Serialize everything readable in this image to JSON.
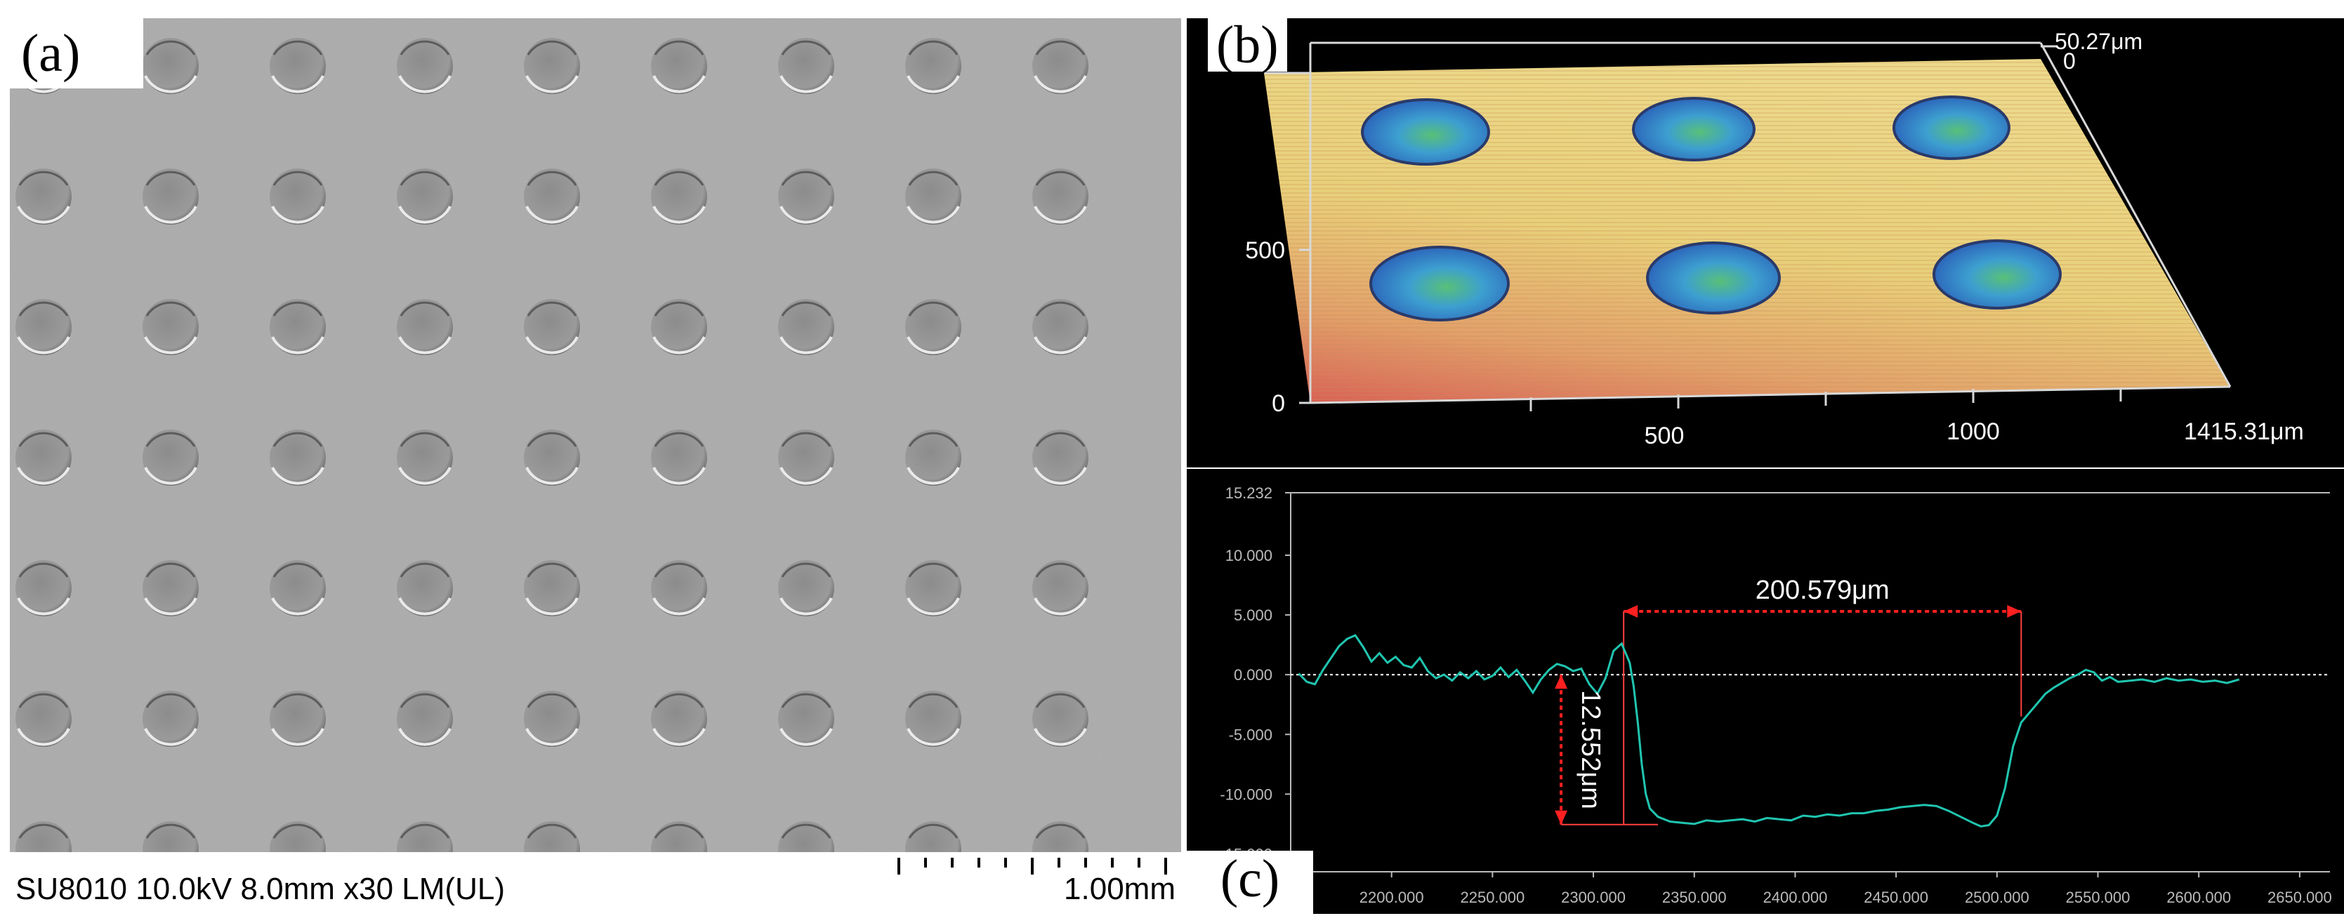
{
  "panels": {
    "a": {
      "label": "(a)",
      "sem_info": "SU8010 10.0kV 8.0mm x30 LM(UL)",
      "scale_bar": "1.00mm",
      "dimple_grid": {
        "rows": 7,
        "cols": 9
      }
    },
    "b": {
      "label": "(b)",
      "z_max": "50.27μm",
      "z_min": "0",
      "y_ticks": [
        "0",
        "500"
      ],
      "x_ticks": [
        "500",
        "1000"
      ],
      "x_max": "1415.31μm"
    },
    "c": {
      "label": "(c)",
      "width_annotation": "200.579μm",
      "depth_annotation": "12.552μm"
    }
  },
  "chart_data": {
    "type": "line",
    "x_ticks": [
      "2200.000",
      "2250.000",
      "2300.000",
      "2350.000",
      "2400.000",
      "2450.000",
      "2500.000",
      "2550.000",
      "2600.000",
      "2650.000"
    ],
    "y_ticks": [
      "15.232",
      "10.000",
      "5.000",
      "0.000",
      "-5.000",
      "-10.000",
      "-15.000"
    ],
    "xlim": [
      2150,
      2665
    ],
    "ylim": [
      -16.5,
      15.232
    ],
    "grid": false,
    "series": [
      {
        "color": "#20c5b0",
        "points": [
          [
            2154,
            0.1
          ],
          [
            2158,
            -0.6
          ],
          [
            2162,
            -0.8
          ],
          [
            2166,
            0.4
          ],
          [
            2170,
            1.4
          ],
          [
            2174,
            2.4
          ],
          [
            2178,
            3.0
          ],
          [
            2182,
            3.3
          ],
          [
            2186,
            2.3
          ],
          [
            2190,
            1.1
          ],
          [
            2194,
            1.8
          ],
          [
            2198,
            1.0
          ],
          [
            2202,
            1.5
          ],
          [
            2206,
            0.8
          ],
          [
            2210,
            0.6
          ],
          [
            2214,
            1.4
          ],
          [
            2218,
            0.3
          ],
          [
            2222,
            -0.3
          ],
          [
            2226,
            0.0
          ],
          [
            2230,
            -0.5
          ],
          [
            2234,
            0.2
          ],
          [
            2238,
            -0.3
          ],
          [
            2242,
            0.3
          ],
          [
            2246,
            -0.4
          ],
          [
            2250,
            -0.1
          ],
          [
            2254,
            0.6
          ],
          [
            2258,
            -0.2
          ],
          [
            2262,
            0.4
          ],
          [
            2266,
            -0.5
          ],
          [
            2270,
            -1.5
          ],
          [
            2274,
            -0.4
          ],
          [
            2278,
            0.4
          ],
          [
            2282,
            0.9
          ],
          [
            2286,
            0.7
          ],
          [
            2290,
            0.3
          ],
          [
            2294,
            0.5
          ],
          [
            2298,
            -0.8
          ],
          [
            2302,
            -1.6
          ],
          [
            2306,
            -0.3
          ],
          [
            2310,
            2.0
          ],
          [
            2314,
            2.6
          ],
          [
            2318,
            1.0
          ],
          [
            2320,
            -1.0
          ],
          [
            2322,
            -4.0
          ],
          [
            2324,
            -7.5
          ],
          [
            2326,
            -10.0
          ],
          [
            2328,
            -11.2
          ],
          [
            2332,
            -11.9
          ],
          [
            2338,
            -12.3
          ],
          [
            2344,
            -12.4
          ],
          [
            2350,
            -12.5
          ],
          [
            2356,
            -12.2
          ],
          [
            2362,
            -12.3
          ],
          [
            2368,
            -12.2
          ],
          [
            2374,
            -12.1
          ],
          [
            2380,
            -12.3
          ],
          [
            2386,
            -12.0
          ],
          [
            2392,
            -12.1
          ],
          [
            2398,
            -12.2
          ],
          [
            2404,
            -11.8
          ],
          [
            2410,
            -11.9
          ],
          [
            2416,
            -11.7
          ],
          [
            2422,
            -11.8
          ],
          [
            2428,
            -11.6
          ],
          [
            2434,
            -11.6
          ],
          [
            2440,
            -11.4
          ],
          [
            2446,
            -11.3
          ],
          [
            2452,
            -11.1
          ],
          [
            2458,
            -11.0
          ],
          [
            2464,
            -10.9
          ],
          [
            2470,
            -11.0
          ],
          [
            2476,
            -11.4
          ],
          [
            2482,
            -11.9
          ],
          [
            2488,
            -12.4
          ],
          [
            2492,
            -12.7
          ],
          [
            2496,
            -12.6
          ],
          [
            2500,
            -11.8
          ],
          [
            2504,
            -9.5
          ],
          [
            2508,
            -6.0
          ],
          [
            2512,
            -4.0
          ],
          [
            2516,
            -3.2
          ],
          [
            2520,
            -2.4
          ],
          [
            2524,
            -1.6
          ],
          [
            2528,
            -1.1
          ],
          [
            2532,
            -0.7
          ],
          [
            2536,
            -0.3
          ],
          [
            2540,
            0.0
          ],
          [
            2544,
            0.4
          ],
          [
            2548,
            0.2
          ],
          [
            2552,
            -0.5
          ],
          [
            2556,
            -0.2
          ],
          [
            2560,
            -0.6
          ],
          [
            2566,
            -0.5
          ],
          [
            2572,
            -0.4
          ],
          [
            2578,
            -0.6
          ],
          [
            2584,
            -0.3
          ],
          [
            2590,
            -0.5
          ],
          [
            2596,
            -0.4
          ],
          [
            2602,
            -0.6
          ],
          [
            2608,
            -0.5
          ],
          [
            2614,
            -0.7
          ],
          [
            2620,
            -0.4
          ]
        ]
      }
    ],
    "reference_line": {
      "y": 0,
      "color": "#ffffff"
    },
    "annotations": [
      {
        "kind": "width",
        "x_from": 2315,
        "x_to": 2512,
        "y": 5.3,
        "color": "#ff2020"
      },
      {
        "kind": "depth",
        "x": 2284,
        "y_from": 0,
        "y_to": -12.55,
        "color": "#ff2020"
      }
    ]
  }
}
